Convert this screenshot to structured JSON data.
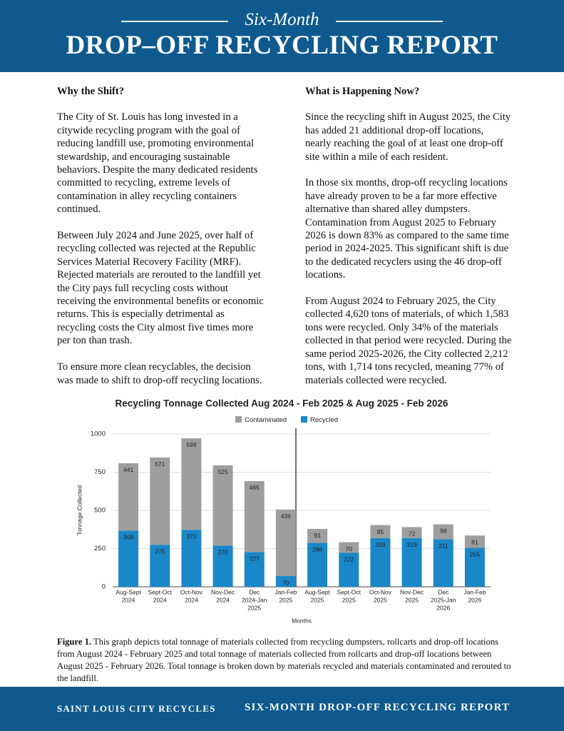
{
  "header": {
    "kicker": "Six-Month",
    "title": "DROP–OFF RECYCLING REPORT"
  },
  "sections": [
    {
      "heading": "Why the Shift?",
      "paragraphs": [
        "The City of St. Louis has long invested in a citywide recycling program with the goal of reducing landfill use, promoting environmental stewardship, and encouraging sustainable behaviors. Despite the many dedicated residents committed to recycling, extreme levels of contamination in alley recycling containers continued.",
        "Between July 2024 and June 2025, over half of recycling collected was rejected at the Republic Services Material Recovery Facility (MRF). Rejected materials are rerouted to the landfill yet the City pays full recycling costs without receiving the environmental benefits or economic returns. This is especially detrimental as recycling costs the City almost five times more per ton than trash.",
        "To ensure more clean recyclables, the decision was made to shift to drop-off recycling locations."
      ]
    },
    {
      "heading": "What is Happening Now?",
      "paragraphs": [
        "Since the recycling shift in August 2025, the City has added 21 additional drop-off locations, nearly reaching the goal of at least one drop-off site within a mile of each resident.",
        "In those six months, drop-off recycling locations have already proven to be a far more effective alternative than shared alley dumpsters. Contamination from August 2025 to February 2026 is down 83% as compared to the same time period in 2024-2025. This significant shift is due to the dedicated recyclers using the 46 drop-off locations.",
        "From August 2024 to February 2025, the City collected 4,620 tons of materials, of which 1,583 tons were recycled. Only 34% of the materials collected in that period were recycled. During the same period 2025-2026, the City collected 2,212 tons, with 1,714 tons recycled, meaning 77% of materials collected were recycled."
      ]
    }
  ],
  "chart_data": {
    "type": "stacked-bar",
    "title": "Recycling Tonnage Collected Aug 2024 - Feb 2025 & Aug 2025 - Feb 2026",
    "x_label": "Months",
    "y_label": "Tonnage Collected",
    "categories": [
      [
        "Aug-Sept",
        "2024"
      ],
      [
        "Sept-Oct",
        "2024"
      ],
      [
        "Oct-Nov",
        "2024"
      ],
      [
        "Nov-Dec",
        "2024"
      ],
      [
        "Dec",
        "2024-Jan",
        "2025"
      ],
      [
        "Jan-Feb",
        "2025"
      ],
      [
        "Aug-Sept",
        "2025"
      ],
      [
        "Sept-Oct",
        "2025"
      ],
      [
        "Oct-Nov",
        "2025"
      ],
      [
        "Nov-Dec",
        "2025"
      ],
      [
        "Dec",
        "2025-Jan",
        "2026"
      ],
      [
        "Jan-Feb",
        "2026"
      ]
    ],
    "series": [
      {
        "name": "Contaminated",
        "color": "#9e9e9e",
        "values": [
          441,
          571,
          599,
          525,
          465,
          436,
          91,
          70,
          85,
          72,
          98,
          81
        ]
      },
      {
        "name": "Recycled",
        "color": "#1a87c9",
        "values": [
          368,
          275,
          373,
          270,
          227,
          70,
          288,
          222,
          319,
          319,
          311,
          255
        ]
      }
    ],
    "ylim": [
      0,
      1000
    ],
    "yticks": [
      0,
      250,
      500,
      750,
      1000
    ],
    "grid": true,
    "legend": "top"
  },
  "caption": {
    "label": "Figure 1.",
    "text": "This graph depicts total tonnage of materials collected from recycling dumpsters, rollcarts and drop-off locations from August 2024 - February 2025 and total tonnage of materials collected from rollcarts and drop-off locations between August 2025 - February 2026. Total tonnage is broken down by materials recycled and materials contaminated and rerouted to the landfill."
  },
  "footer": {
    "left": "SAINT LOUIS CITY RECYCLES",
    "right": "SIX-MONTH DROP-OFF RECYCLING REPORT"
  }
}
